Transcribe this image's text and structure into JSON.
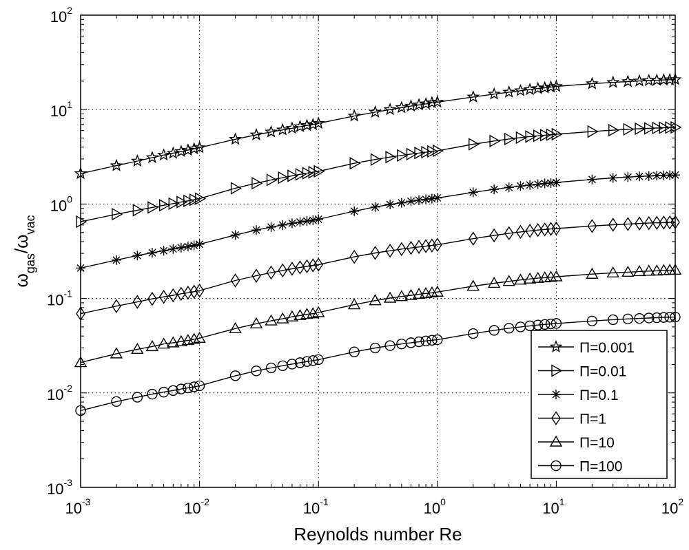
{
  "chart_data": {
    "type": "line",
    "xscale": "log",
    "yscale": "log",
    "xlim": [
      0.001,
      100
    ],
    "ylim": [
      0.001,
      100
    ],
    "grid": true,
    "legend_position": "bottom-right",
    "xlabel": "Reynolds number Re",
    "ylabel": {
      "base": "ω",
      "sub1": "gas",
      "slash": "/",
      "base2": "ω",
      "sub2": "vac"
    },
    "x_ticks": [
      {
        "base": "10",
        "exp": "-3"
      },
      {
        "base": "10",
        "exp": "-2"
      },
      {
        "base": "10",
        "exp": "-1"
      },
      {
        "base": "10",
        "exp": "0"
      },
      {
        "base": "10",
        "exp": "1"
      },
      {
        "base": "10",
        "exp": "2"
      }
    ],
    "y_ticks": [
      {
        "base": "10",
        "exp": "-3"
      },
      {
        "base": "10",
        "exp": "-2"
      },
      {
        "base": "10",
        "exp": "-1"
      },
      {
        "base": "10",
        "exp": "0"
      },
      {
        "base": "10",
        "exp": "1"
      },
      {
        "base": "10",
        "exp": "2"
      }
    ],
    "x": [
      0.001,
      0.002,
      0.003,
      0.004,
      0.005,
      0.006,
      0.007,
      0.008,
      0.009,
      0.01,
      0.02,
      0.03,
      0.04,
      0.05,
      0.06,
      0.07,
      0.08,
      0.09,
      0.1,
      0.2,
      0.3,
      0.4,
      0.5,
      0.6,
      0.7,
      0.8,
      0.9,
      1,
      2,
      3,
      4,
      5,
      6,
      7,
      8,
      9,
      10,
      20,
      30,
      40,
      50,
      60,
      70,
      80,
      90,
      100
    ],
    "series": [
      {
        "name": "Π=0.001",
        "marker": "star",
        "values": [
          2.1,
          2.55,
          2.85,
          3.1,
          3.3,
          3.45,
          3.6,
          3.72,
          3.84,
          3.95,
          4.85,
          5.4,
          5.8,
          6.1,
          6.35,
          6.6,
          6.8,
          6.95,
          7.15,
          8.55,
          9.4,
          10.0,
          10.5,
          10.9,
          11.2,
          11.5,
          11.8,
          12.0,
          13.6,
          14.6,
          15.3,
          15.85,
          16.3,
          16.7,
          17.0,
          17.3,
          17.6,
          18.8,
          19.4,
          19.8,
          20.1,
          20.3,
          20.45,
          20.6,
          20.7,
          20.8
        ]
      },
      {
        "name": "Π=0.01",
        "marker": "triangle-right",
        "values": [
          0.65,
          0.78,
          0.86,
          0.92,
          0.97,
          1.01,
          1.05,
          1.08,
          1.11,
          1.14,
          1.47,
          1.66,
          1.8,
          1.9,
          1.99,
          2.06,
          2.12,
          2.17,
          2.22,
          2.7,
          2.96,
          3.14,
          3.27,
          3.38,
          3.47,
          3.54,
          3.6,
          3.66,
          4.3,
          4.65,
          4.88,
          5.05,
          5.18,
          5.28,
          5.36,
          5.42,
          5.48,
          5.85,
          6.05,
          6.18,
          6.27,
          6.33,
          6.38,
          6.42,
          6.45,
          6.48
        ]
      },
      {
        "name": "Π=0.1",
        "marker": "asterisk",
        "values": [
          0.21,
          0.255,
          0.285,
          0.305,
          0.32,
          0.335,
          0.345,
          0.355,
          0.365,
          0.375,
          0.47,
          0.53,
          0.57,
          0.6,
          0.625,
          0.645,
          0.66,
          0.675,
          0.69,
          0.84,
          0.93,
          0.99,
          1.03,
          1.07,
          1.1,
          1.12,
          1.14,
          1.16,
          1.33,
          1.43,
          1.5,
          1.55,
          1.59,
          1.62,
          1.65,
          1.67,
          1.69,
          1.82,
          1.89,
          1.93,
          1.96,
          1.98,
          2.0,
          2.01,
          2.02,
          2.03
        ]
      },
      {
        "name": "Π=1",
        "marker": "diamond",
        "values": [
          0.069,
          0.083,
          0.092,
          0.099,
          0.104,
          0.108,
          0.112,
          0.115,
          0.118,
          0.121,
          0.155,
          0.174,
          0.188,
          0.198,
          0.206,
          0.213,
          0.219,
          0.224,
          0.228,
          0.276,
          0.303,
          0.32,
          0.333,
          0.343,
          0.351,
          0.358,
          0.364,
          0.37,
          0.43,
          0.465,
          0.49,
          0.507,
          0.52,
          0.53,
          0.538,
          0.545,
          0.55,
          0.585,
          0.603,
          0.614,
          0.622,
          0.628,
          0.632,
          0.636,
          0.639,
          0.642
        ]
      },
      {
        "name": "Π=10",
        "marker": "triangle-up",
        "values": [
          0.021,
          0.026,
          0.029,
          0.031,
          0.033,
          0.034,
          0.035,
          0.036,
          0.037,
          0.038,
          0.048,
          0.054,
          0.058,
          0.061,
          0.064,
          0.066,
          0.068,
          0.069,
          0.071,
          0.086,
          0.095,
          0.101,
          0.105,
          0.108,
          0.111,
          0.113,
          0.115,
          0.117,
          0.135,
          0.145,
          0.152,
          0.157,
          0.161,
          0.164,
          0.166,
          0.168,
          0.17,
          0.181,
          0.187,
          0.19,
          0.193,
          0.195,
          0.196,
          0.198,
          0.199,
          0.2
        ]
      },
      {
        "name": "Π=100",
        "marker": "circle",
        "values": [
          0.0065,
          0.0081,
          0.009,
          0.0097,
          0.0102,
          0.0106,
          0.011,
          0.0113,
          0.0116,
          0.0119,
          0.0152,
          0.0171,
          0.0184,
          0.0194,
          0.0202,
          0.0209,
          0.0215,
          0.022,
          0.0225,
          0.0272,
          0.0299,
          0.0317,
          0.033,
          0.034,
          0.0348,
          0.0355,
          0.0361,
          0.0366,
          0.0425,
          0.046,
          0.0484,
          0.05,
          0.0513,
          0.0523,
          0.0531,
          0.0538,
          0.0544,
          0.0578,
          0.0596,
          0.0607,
          0.0615,
          0.0621,
          0.0626,
          0.063,
          0.0633,
          0.0636
        ]
      }
    ]
  }
}
